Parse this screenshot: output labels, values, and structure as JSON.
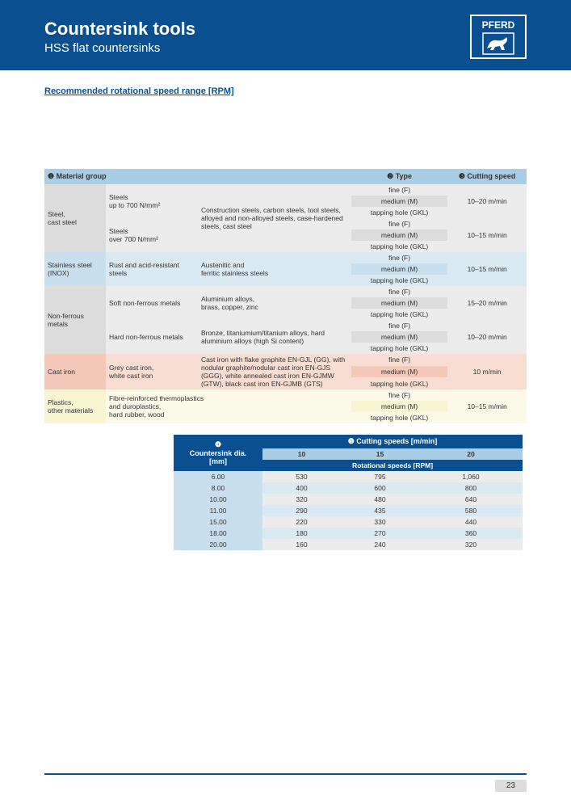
{
  "brand": "PFERD",
  "header": {
    "title": "Countersink tools",
    "subtitle": "HSS flat countersinks"
  },
  "sectionTitle": "Recommended rotational speed range [RPM]",
  "table1": {
    "headers": {
      "mg": "❶ Material group",
      "type": "❷ Type",
      "speed": "❸ Cutting speed"
    },
    "types": {
      "fine": "fine (F)",
      "medium": "medium (M)",
      "tap": "tapping hole (GKL)"
    },
    "groups": [
      {
        "name": "Steel,\ncast steel",
        "bg": "gray",
        "subs": [
          {
            "label": "Steels\nup to 700 N/mm²",
            "desc": "",
            "speed": "10–20 m/min"
          },
          {
            "label": "Steels\nover 700 N/mm²",
            "desc": "Construction steels, carbon steels, tool steels, alloyed and non-alloyed steels, case-hardened steels, cast steel",
            "speed": "10–15 m/min"
          }
        ],
        "descShared": true
      },
      {
        "name": "Stainless steel\n(INOX)",
        "bg": "blue",
        "subs": [
          {
            "label": "Rust and acid-resistant steels",
            "desc": "Austenitic and\nferritic stainless steels",
            "speed": "10–15 m/min"
          }
        ]
      },
      {
        "name": "Non-ferrous\nmetals",
        "bg": "gray",
        "subs": [
          {
            "label": "Soft non-ferrous metals",
            "desc": "Aluminium alloys,\nbrass, copper, zinc",
            "speed": "15–20 m/min"
          },
          {
            "label": "Hard non-ferrous metals",
            "desc": "Bronze, titaniumium/titanium alloys, hard aluminium alloys (high Si content)",
            "speed": "10–20 m/min"
          }
        ]
      },
      {
        "name": "Cast iron",
        "bg": "peach",
        "subs": [
          {
            "label": "Grey cast iron,\nwhite cast iron",
            "desc": "Cast iron with flake graphite EN-GJL (GG), with nodular graphite/nodular cast iron EN-GJS (GGG), white annealed cast iron EN-GJMW (GTW), black cast iron EN-GJMB (GTS)",
            "speed": "10 m/min"
          }
        ]
      },
      {
        "name": "Plastics,\nother materials",
        "bg": "yellow",
        "subs": [
          {
            "label": "Fibre-reinforced thermoplastics\nand duroplastics,\nhard rubber, wood",
            "desc": "",
            "speed": "10–15 m/min"
          }
        ],
        "noDescCol": true
      }
    ]
  },
  "table2": {
    "h_dia": "❹\nCountersink dia.\n[mm]",
    "h_speeds": "❺ Cutting speeds [m/min]",
    "h_rot": "Rotational speeds [RPM]",
    "speedCols": [
      "10",
      "15",
      "20"
    ],
    "rows": [
      {
        "dia": "6.00",
        "v": [
          "530",
          "795",
          "1,060"
        ]
      },
      {
        "dia": "8.00",
        "v": [
          "400",
          "600",
          "800"
        ]
      },
      {
        "dia": "10.00",
        "v": [
          "320",
          "480",
          "640"
        ]
      },
      {
        "dia": "11.00",
        "v": [
          "290",
          "435",
          "580"
        ]
      },
      {
        "dia": "15.00",
        "v": [
          "220",
          "330",
          "440"
        ]
      },
      {
        "dia": "18.00",
        "v": [
          "180",
          "270",
          "360"
        ]
      },
      {
        "dia": "20.00",
        "v": [
          "160",
          "240",
          "320"
        ]
      }
    ]
  },
  "pageNum": "23"
}
